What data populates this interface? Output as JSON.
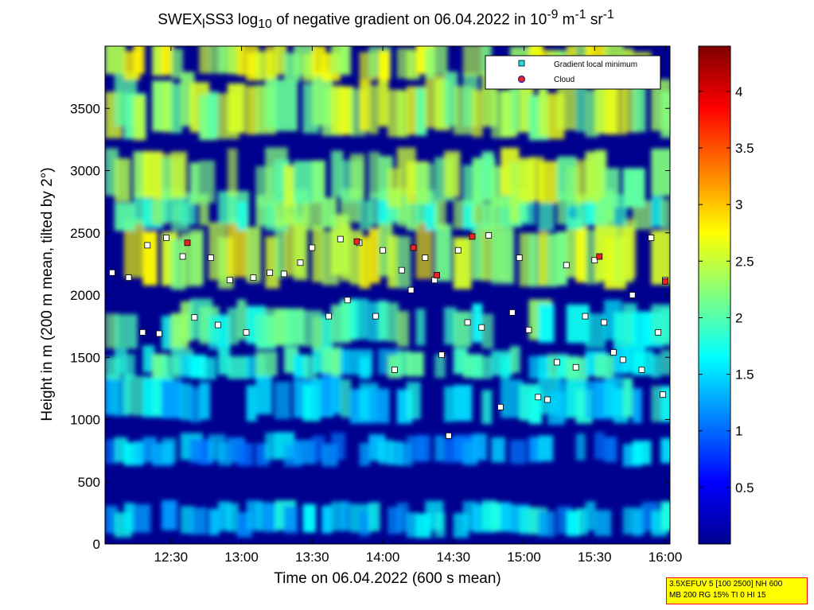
{
  "chart_data": {
    "type": "heatmap",
    "title": {
      "pre": "SWEX",
      "sub1": "l",
      "mid": "SS3 log",
      "sub2": "10",
      "post1": " of negative gradient on 06.04.2022 in 10",
      "sup1": "-9",
      "post2": " m",
      "sup2": "-1",
      "post3": " sr",
      "sup3": "-1"
    },
    "xlabel": "Time on 06.04.2022 (600 s mean)",
    "ylabel": "Height in m (200 m mean, tilted by 2°)",
    "x_ticks": [
      "12:30",
      "13:00",
      "13:30",
      "14:00",
      "14:30",
      "15:00",
      "15:30",
      "16:00"
    ],
    "y_ticks": [
      0,
      500,
      1000,
      1500,
      2000,
      2500,
      3000,
      3500
    ],
    "xlim": [
      "12:02",
      "16:02"
    ],
    "ylim": [
      0,
      4000
    ],
    "colorbar": {
      "min": 0,
      "max": 4.4,
      "ticks": [
        0.5,
        1,
        1.5,
        2,
        2.5,
        3,
        3.5,
        4
      ]
    },
    "legend": {
      "position": "top-right",
      "entries": [
        {
          "label": "Gradient local minimum",
          "marker": "square",
          "color": "#22dddd"
        },
        {
          "label": "Cloud",
          "marker": "circle",
          "color": "#ee2222"
        }
      ]
    },
    "layers": [
      {
        "y_min": 80,
        "y_max": 300,
        "value": 1.4
      },
      {
        "y_min": 650,
        "y_max": 850,
        "value": 1.3
      },
      {
        "y_min": 1000,
        "y_max": 1300,
        "value": 1.5
      },
      {
        "y_min": 1350,
        "y_max": 1550,
        "value": 1.7
      },
      {
        "y_min": 1600,
        "y_max": 1900,
        "value": 1.9
      },
      {
        "y_min": 2100,
        "y_max": 2550,
        "value": 2.4
      },
      {
        "y_min": 2550,
        "y_max": 2800,
        "value": 2.0
      },
      {
        "y_min": 2750,
        "y_max": 3100,
        "value": 2.3
      },
      {
        "y_min": 3300,
        "y_max": 3700,
        "value": 2.3
      },
      {
        "y_min": 3750,
        "y_max": 4000,
        "value": 2.4
      }
    ],
    "local_minima": [
      {
        "time": "12:05",
        "height": 2180
      },
      {
        "time": "12:12",
        "height": 2140
      },
      {
        "time": "12:18",
        "height": 1700
      },
      {
        "time": "12:25",
        "height": 1690
      },
      {
        "time": "12:20",
        "height": 2400
      },
      {
        "time": "12:28",
        "height": 2460
      },
      {
        "time": "12:35",
        "height": 2310
      },
      {
        "time": "12:40",
        "height": 1820
      },
      {
        "time": "12:47",
        "height": 2300
      },
      {
        "time": "12:50",
        "height": 1760
      },
      {
        "time": "12:55",
        "height": 2120
      },
      {
        "time": "13:02",
        "height": 1700
      },
      {
        "time": "13:05",
        "height": 2140
      },
      {
        "time": "13:12",
        "height": 2180
      },
      {
        "time": "13:18",
        "height": 2170
      },
      {
        "time": "13:25",
        "height": 2260
      },
      {
        "time": "13:30",
        "height": 2380
      },
      {
        "time": "13:37",
        "height": 1830
      },
      {
        "time": "13:42",
        "height": 2450
      },
      {
        "time": "13:45",
        "height": 1960
      },
      {
        "time": "13:50",
        "height": 2420
      },
      {
        "time": "13:57",
        "height": 1830
      },
      {
        "time": "14:00",
        "height": 2360
      },
      {
        "time": "14:05",
        "height": 1400
      },
      {
        "time": "14:08",
        "height": 2200
      },
      {
        "time": "14:12",
        "height": 2040
      },
      {
        "time": "14:18",
        "height": 2300
      },
      {
        "time": "14:22",
        "height": 2120
      },
      {
        "time": "14:25",
        "height": 1520
      },
      {
        "time": "14:28",
        "height": 870
      },
      {
        "time": "14:32",
        "height": 2360
      },
      {
        "time": "14:36",
        "height": 1780
      },
      {
        "time": "14:42",
        "height": 1740
      },
      {
        "time": "14:45",
        "height": 2480
      },
      {
        "time": "14:50",
        "height": 1100
      },
      {
        "time": "14:55",
        "height": 1860
      },
      {
        "time": "14:58",
        "height": 2300
      },
      {
        "time": "15:02",
        "height": 1720
      },
      {
        "time": "15:06",
        "height": 1180
      },
      {
        "time": "15:10",
        "height": 1160
      },
      {
        "time": "15:14",
        "height": 1460
      },
      {
        "time": "15:18",
        "height": 2240
      },
      {
        "time": "15:22",
        "height": 1420
      },
      {
        "time": "15:26",
        "height": 1830
      },
      {
        "time": "15:30",
        "height": 2280
      },
      {
        "time": "15:34",
        "height": 1780
      },
      {
        "time": "15:38",
        "height": 1540
      },
      {
        "time": "15:42",
        "height": 1480
      },
      {
        "time": "15:46",
        "height": 2000
      },
      {
        "time": "15:50",
        "height": 1400
      },
      {
        "time": "15:54",
        "height": 2460
      },
      {
        "time": "15:57",
        "height": 1700
      },
      {
        "time": "16:00",
        "height": 2120
      },
      {
        "time": "15:59",
        "height": 1200
      }
    ],
    "clouds": [
      {
        "time": "12:37",
        "height": 2420
      },
      {
        "time": "13:49",
        "height": 2430
      },
      {
        "time": "14:13",
        "height": 2380
      },
      {
        "time": "14:23",
        "height": 2160
      },
      {
        "time": "14:38",
        "height": 2470
      },
      {
        "time": "15:32",
        "height": 2310
      },
      {
        "time": "16:00",
        "height": 2110
      }
    ]
  },
  "info_box": {
    "line1": "3.5XEFUV 5 [100 2500] NH 600",
    "line2": "MB 200 RG 15% TI 0 HI 15"
  }
}
